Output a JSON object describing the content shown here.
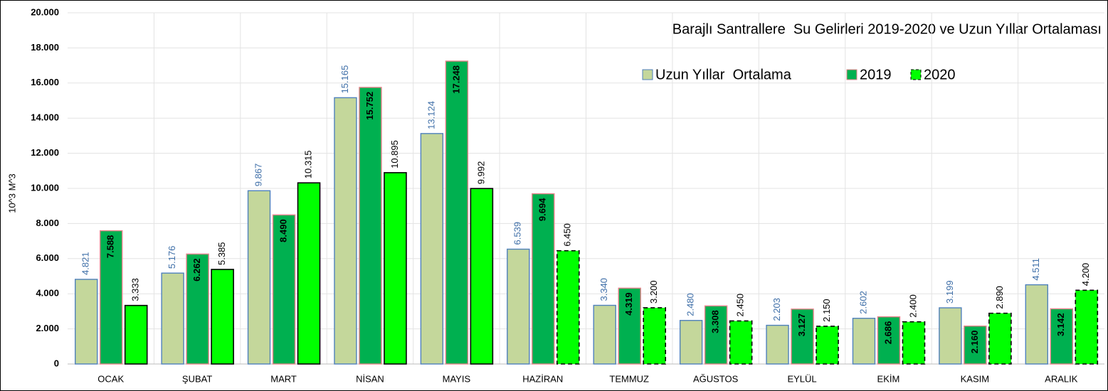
{
  "chart_data": {
    "type": "bar",
    "title": "Barajlı Santrallere  Su Gelirleri 2019-2020 ve Uzun Yıllar Ortalaması",
    "y_label": "10^3 M^3",
    "categories": [
      "OCAK",
      "ŞUBAT",
      "MART",
      "NİSAN",
      "MAYIS",
      "HAZİRAN",
      "TEMMUZ",
      "AĞUSTOS",
      "EYLÜL",
      "EKİM",
      "KASIM",
      "ARALIK"
    ],
    "series": [
      {
        "name": "Uzun Yıllar  Ortalama",
        "color": "#c4d79b",
        "border": "#4f81bd",
        "label_color": "#3f6fa8",
        "values": [
          4821,
          5176,
          9867,
          15165,
          13124,
          6539,
          3340,
          2480,
          2203,
          2602,
          3199,
          4511
        ],
        "value_labels": [
          "4.821",
          "5.176",
          "9.867",
          "15.165",
          "13.124",
          "6.539",
          "3.340",
          "2.480",
          "2.203",
          "2.602",
          "3.199",
          "4.511"
        ]
      },
      {
        "name": "2019",
        "color": "#00b050",
        "border": "#e6828a",
        "label_color": "#000000",
        "values": [
          7588,
          6262,
          8490,
          15752,
          17248,
          9694,
          4319,
          3308,
          3127,
          2686,
          2160,
          3142
        ],
        "value_labels": [
          "7.588",
          "6.262",
          "8.490",
          "15.752",
          "17.248",
          "9.694",
          "4.319",
          "3.308",
          "3.127",
          "2.686",
          "2.160",
          "3.142"
        ]
      },
      {
        "name": "2020",
        "color": "#00ff00",
        "border": "#000000",
        "label_color": "#000000",
        "values": [
          3333,
          5385,
          10315,
          10895,
          9992,
          6450,
          3200,
          2450,
          2150,
          2400,
          2890,
          4200
        ],
        "value_labels": [
          "3.333",
          "5.385",
          "10.315",
          "10.895",
          "9.992",
          "6.450",
          "3.200",
          "2.450",
          "2.150",
          "2.400",
          "2.890",
          "4.200"
        ],
        "dashed": [
          false,
          false,
          false,
          false,
          false,
          true,
          true,
          true,
          true,
          true,
          true,
          true
        ]
      }
    ],
    "ylim": [
      0,
      20000
    ],
    "yticks": [
      0,
      {
        "value": 2000,
        "label": "2.000"
      },
      {
        "value": 4000,
        "label": "4.000"
      },
      {
        "value": 6000,
        "label": "6.000"
      },
      {
        "value": 8000,
        "label": "8.000"
      },
      {
        "value": 10000,
        "label": "10.000"
      },
      {
        "value": 12000,
        "label": "12.000"
      },
      {
        "value": 14000,
        "label": "14.000"
      },
      {
        "value": 16000,
        "label": "16.000"
      },
      {
        "value": 18000,
        "label": "18.000"
      },
      {
        "value": 20000,
        "label": "20.000"
      }
    ],
    "grid": true
  }
}
